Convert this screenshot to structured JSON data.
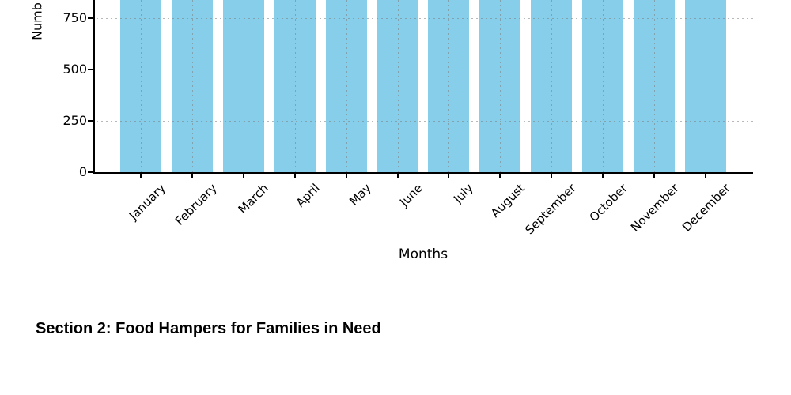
{
  "document": {
    "background_color": "#ffffff",
    "section_heading": "Section 2: Food Hampers for Families in Need"
  },
  "chart_data": {
    "type": "bar",
    "title": "",
    "xlabel": "Months",
    "ylabel_visible": "Numb",
    "ylabel_note": "y-axis title is truncated by the top edge of the image; only 'Numb' is visible",
    "categories": [
      "January",
      "February",
      "March",
      "April",
      "May",
      "June",
      "July",
      "August",
      "September",
      "October",
      "November",
      "December"
    ],
    "values": [
      ">834",
      ">834",
      ">834",
      ">834",
      ">834",
      ">834",
      ">834",
      ">834",
      ">834",
      ">834",
      ">834",
      ">834"
    ],
    "values_note": "all 12 bars extend above the visible crop of the image; each bar's value exceeds ~834, the value at the top edge",
    "bars_clipped_at_top": true,
    "yticks": [
      0,
      250,
      500,
      750
    ],
    "ylim_visible": [
      0,
      834
    ],
    "grid": true,
    "gridline_style": "dashed",
    "legend": "none",
    "colors": {
      "bar": "#87CEEB",
      "grid": "#b0b0b0",
      "axis": "#000000",
      "text": "#000000"
    }
  }
}
